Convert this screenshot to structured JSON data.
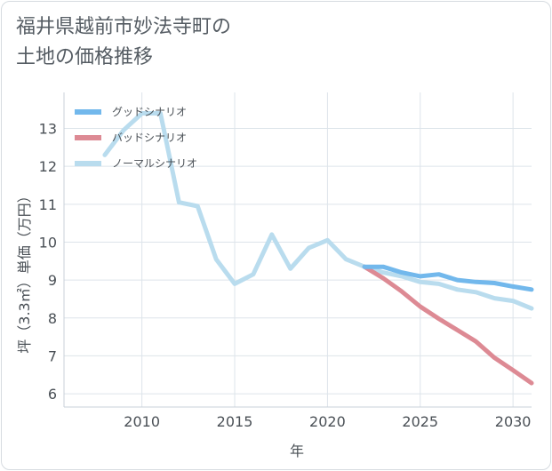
{
  "title_line1": "福井県越前市妙法寺町の",
  "title_line2": "土地の価格推移",
  "chart_data": {
    "type": "line",
    "xlabel": "年",
    "ylabel": "坪（3.3㎡）単価（万円）",
    "xlim": [
      2005.8,
      2031
    ],
    "ylim": [
      5.65,
      13.95
    ],
    "xticks": [
      2010,
      2015,
      2020,
      2025,
      2030
    ],
    "yticks": [
      6,
      7,
      8,
      9,
      10,
      11,
      12,
      13
    ],
    "grid": true,
    "legend_position": "top-left",
    "series": [
      {
        "name": "グッドシナリオ",
        "color": "#72b8ec",
        "x": [
          2022,
          2023,
          2024,
          2025,
          2026,
          2027,
          2028,
          2029,
          2030,
          2031
        ],
        "values": [
          9.35,
          9.35,
          9.2,
          9.1,
          9.15,
          9.0,
          8.95,
          8.92,
          8.83,
          8.75
        ]
      },
      {
        "name": "バッドシナリオ",
        "color": "#dd8a94",
        "x": [
          2022,
          2023,
          2024,
          2025,
          2026,
          2027,
          2028,
          2029,
          2030,
          2031
        ],
        "values": [
          9.35,
          9.05,
          8.7,
          8.3,
          7.98,
          7.68,
          7.38,
          6.95,
          6.62,
          6.28
        ]
      },
      {
        "name": "ノーマルシナリオ",
        "color": "#b9dcee",
        "x": [
          2008,
          2009,
          2010,
          2011,
          2012,
          2013,
          2014,
          2015,
          2016,
          2017,
          2018,
          2019,
          2020,
          2021,
          2022,
          2023,
          2024,
          2025,
          2026,
          2027,
          2028,
          2029,
          2030,
          2031
        ],
        "values": [
          12.3,
          12.95,
          13.4,
          13.4,
          11.05,
          10.95,
          9.55,
          8.9,
          9.15,
          10.2,
          9.3,
          9.85,
          10.05,
          9.55,
          9.35,
          9.2,
          9.1,
          8.95,
          8.9,
          8.75,
          8.68,
          8.52,
          8.45,
          8.25
        ]
      }
    ]
  }
}
